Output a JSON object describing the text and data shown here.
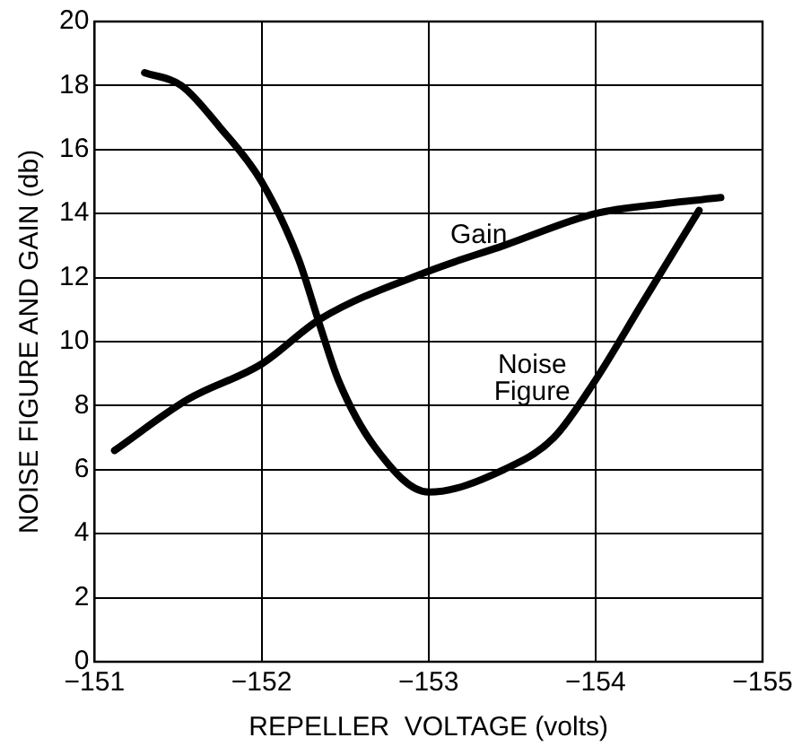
{
  "chart_data": {
    "type": "line",
    "xlabel": "REPELLER  VOLTAGE (volts)",
    "ylabel": "NOISE FIGURE AND GAIN (db)",
    "xlim": [
      -151,
      -155
    ],
    "xticks": [
      {
        "value": -151,
        "label": "−151"
      },
      {
        "value": -152,
        "label": "−152"
      },
      {
        "value": -153,
        "label": "−153"
      },
      {
        "value": -154,
        "label": "−154"
      },
      {
        "value": -155,
        "label": "−155"
      }
    ],
    "ylim": [
      0,
      20
    ],
    "yticks": [
      0,
      2,
      4,
      6,
      8,
      10,
      12,
      14,
      16,
      18,
      20
    ],
    "grid": true,
    "legend": false,
    "marker": "none",
    "line_style": "solid",
    "series": [
      {
        "name": "Gain",
        "color": "#000000",
        "x": [
          -151.12,
          -151.56,
          -152,
          -152.35,
          -153,
          -153.45,
          -154,
          -154.4,
          -154.75
        ],
        "values": [
          6.6,
          8.2,
          9.3,
          10.7,
          12.2,
          13,
          14,
          14.3,
          14.5
        ]
      },
      {
        "name": "Noise\nFigure",
        "color": "#000000",
        "x": [
          -151.3,
          -151.52,
          -151.75,
          -152,
          -152.22,
          -152.35,
          -152.46,
          -152.68,
          -153,
          -153.45,
          -153.75,
          -154,
          -154.28,
          -154.62
        ],
        "values": [
          18.4,
          18,
          16.7,
          15,
          12.6,
          10.5,
          8.8,
          6.7,
          5.3,
          6,
          7,
          8.8,
          11.2,
          14.1
        ]
      }
    ]
  }
}
